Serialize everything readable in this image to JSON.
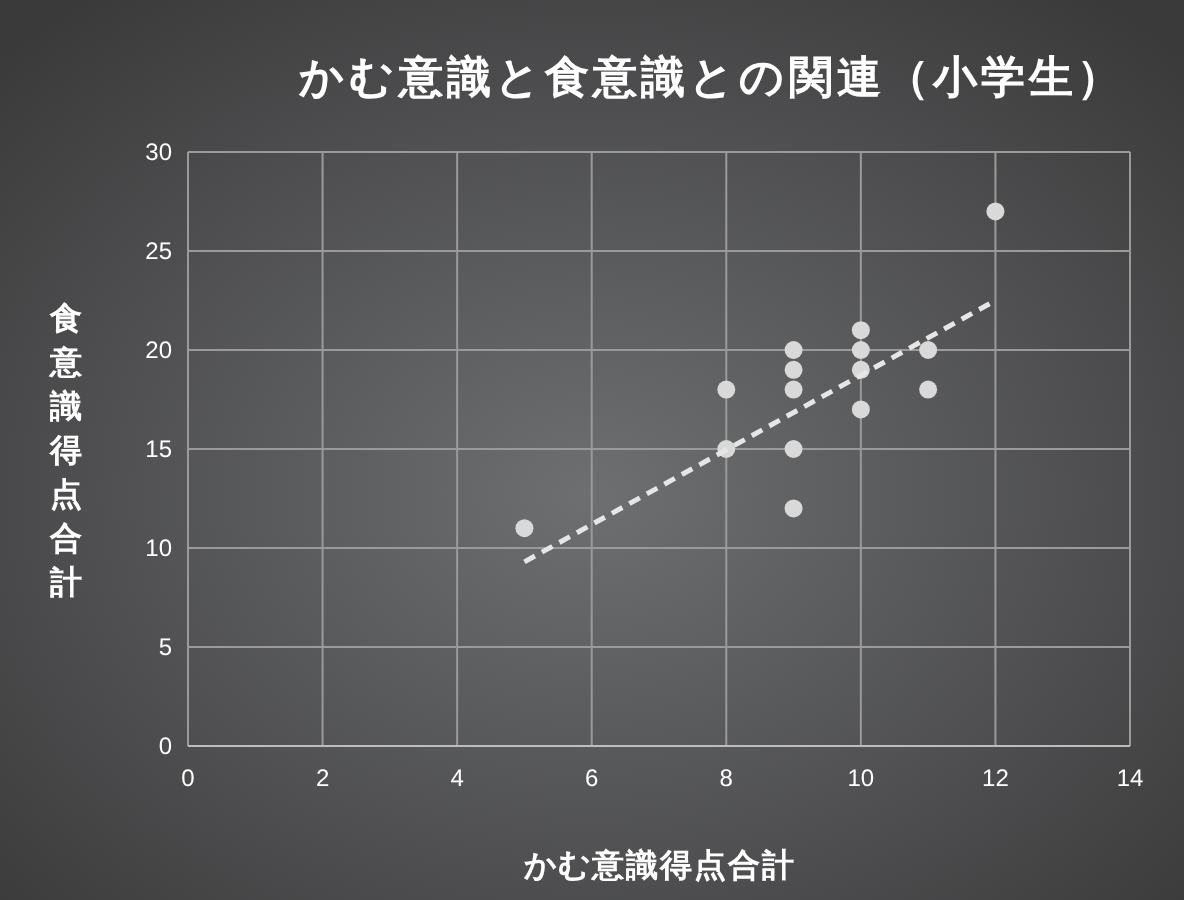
{
  "chart_data": {
    "type": "scatter",
    "title": "かむ意識と食意識との関連（小学生）",
    "xlabel": "かむ意識得点合計",
    "ylabel": "食意識得点合計",
    "xlim": [
      0,
      14
    ],
    "xticks": [
      0,
      2,
      4,
      6,
      8,
      10,
      12,
      14
    ],
    "ylim": [
      0,
      30
    ],
    "yticks": [
      0,
      5,
      10,
      15,
      20,
      25,
      30
    ],
    "grid": true,
    "series": [
      {
        "type": "scatter",
        "color": "#d9d9d9",
        "marker": "circle",
        "x": [
          5,
          8,
          8,
          9,
          9,
          9,
          9,
          9,
          10,
          10,
          10,
          10,
          11,
          11,
          12
        ],
        "values": [
          11,
          18,
          15,
          20,
          19,
          18,
          15,
          12,
          21,
          20,
          19,
          17,
          20,
          18,
          27
        ]
      },
      {
        "type": "line",
        "color": "#e6e6e6",
        "marker": "none",
        "line_style": "dashed",
        "x": [
          5,
          12
        ],
        "values": [
          9.3,
          22.5
        ]
      }
    ]
  }
}
